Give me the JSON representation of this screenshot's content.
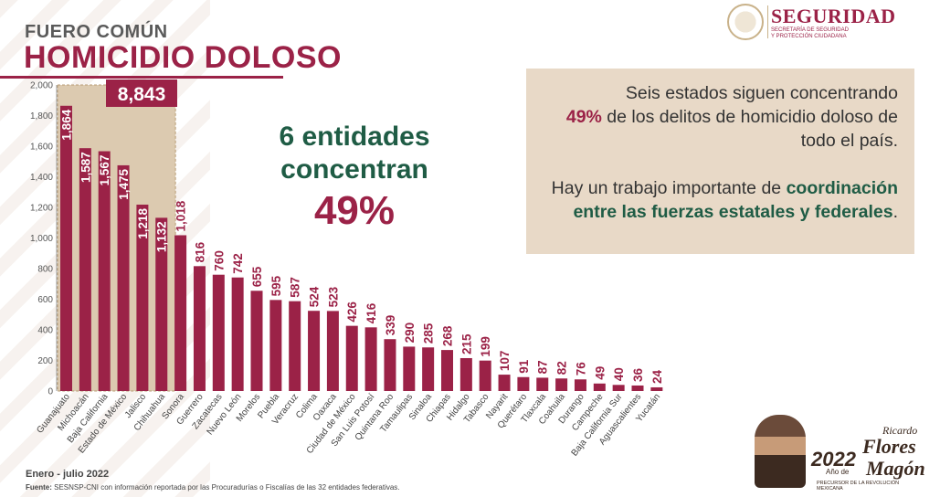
{
  "header": {
    "subtitle": "FUERO COMÚN",
    "title": "HOMICIDIO DOLOSO"
  },
  "logo": {
    "name": "SEGURIDAD",
    "subtitle_line1": "SECRETARÍA DE SEGURIDAD",
    "subtitle_line2": "Y PROTECCIÓN CIUDADANA"
  },
  "callout": {
    "line1": "6 entidades",
    "line2": "concentran",
    "pct": "49%"
  },
  "info_box": {
    "p1_a": "Seis estados siguen concentrando",
    "p1_hl": "49%",
    "p1_b": " de los delitos de homicidio doloso de todo el país.",
    "p2_a": "Hay un trabajo importante de ",
    "p2_hl": "coordinación entre las fuerzas estatales y federales",
    "p2_b": "."
  },
  "footer": {
    "date": "Enero - julio 2022",
    "source_label": "Fuente:",
    "source_text": " SESNSP-CNI con información reportada por las Procuradurías o Fiscalías de las 32 entidades federativas."
  },
  "anniversary": {
    "year": "2022",
    "ano": "Año de",
    "name1": "Ricardo",
    "name2": "Flores",
    "name3": "Magón",
    "tagline": "PRECURSOR DE LA REVOLUCIÓN MEXICANA"
  },
  "colors": {
    "bar": "#9b2247",
    "highlight_box": "#dccab0",
    "accent_green": "#1f5c45",
    "info_bg": "#e8d9c7"
  },
  "chart_data": {
    "type": "bar",
    "categories": [
      "Guanajuato",
      "Michoacán",
      "Baja California",
      "Estado de México",
      "Jalisco",
      "Chihuahua",
      "Sonora",
      "Guerrero",
      "Zacatecas",
      "Nuevo León",
      "Morelos",
      "Puebla",
      "Veracruz",
      "Colima",
      "Oaxaca",
      "Ciudad de México",
      "San Luis Potosí",
      "Quintana Roo",
      "Tamaulipas",
      "Sinaloa",
      "Chiapas",
      "Hidalgo",
      "Tabasco",
      "Nayarit",
      "Querétaro",
      "Tlaxcala",
      "Coahuila",
      "Durango",
      "Campeche",
      "Baja California Sur",
      "Aguascalientes",
      "Yucatán"
    ],
    "values": [
      1864,
      1587,
      1567,
      1475,
      1218,
      1132,
      1018,
      816,
      760,
      742,
      655,
      595,
      587,
      524,
      523,
      426,
      416,
      339,
      290,
      285,
      268,
      215,
      199,
      107,
      91,
      87,
      82,
      76,
      49,
      40,
      36,
      24
    ],
    "value_labels": [
      "1,864",
      "1,587",
      "1,567",
      "1,475",
      "1,218",
      "1,132",
      "1,018",
      "816",
      "760",
      "742",
      "655",
      "595",
      "587",
      "524",
      "523",
      "426",
      "416",
      "339",
      "290",
      "285",
      "268",
      "215",
      "199",
      "107",
      "91",
      "87",
      "82",
      "76",
      "49",
      "40",
      "36",
      "24"
    ],
    "yticks": [
      "0",
      "200",
      "400",
      "600",
      "800",
      "1,000",
      "1,200",
      "1,400",
      "1,600",
      "1,800",
      "2,000"
    ],
    "ylim": [
      0,
      2000
    ],
    "highlight": {
      "count": 6,
      "total_label": "8,843"
    }
  }
}
